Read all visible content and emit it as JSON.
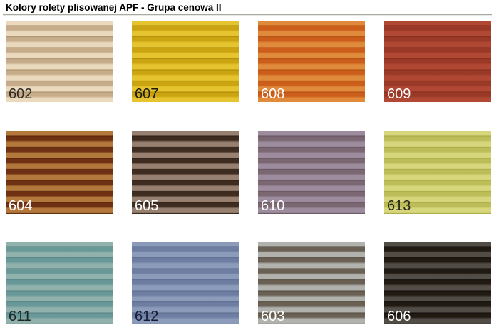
{
  "page": {
    "title": "Kolory rolety plisowanej APF - Grupa cenowa II"
  },
  "swatches": [
    {
      "code": "602",
      "light": "#ead9bd",
      "dark": "#c6ac8a",
      "edge": "#a38b68",
      "label_color": "#2f2a24"
    },
    {
      "code": "607",
      "light": "#e6c430",
      "dark": "#cba511",
      "edge": "#a8860a",
      "label_color": "#1c1a10"
    },
    {
      "code": "608",
      "light": "#e08a3c",
      "dark": "#cb5e1a",
      "edge": "#ad4a10",
      "label_color": "#ffffff"
    },
    {
      "code": "609",
      "light": "#b04834",
      "dark": "#9a3927",
      "edge": "#7f2c1c",
      "label_color": "#ffffff"
    },
    {
      "code": "604",
      "light": "#b3783b",
      "dark": "#6e3113",
      "edge": "#56220a",
      "label_color": "#ffffff"
    },
    {
      "code": "605",
      "light": "#988071",
      "dark": "#3e2c20",
      "edge": "#2a1d14",
      "label_color": "#ffffff"
    },
    {
      "code": "610",
      "light": "#9d8c9d",
      "dark": "#7b6772",
      "edge": "#61505c",
      "label_color": "#ffffff"
    },
    {
      "code": "613",
      "light": "#d6d67d",
      "dark": "#bcbc58",
      "edge": "#a5a53f",
      "label_color": "#23231a"
    },
    {
      "code": "611",
      "light": "#90b1ac",
      "dark": "#699898",
      "edge": "#548082",
      "label_color": "#1e2726"
    },
    {
      "code": "612",
      "light": "#8c9bb9",
      "dark": "#6d7ea2",
      "edge": "#59698c",
      "label_color": "#141c36"
    },
    {
      "code": "603",
      "light": "#b1b1ae",
      "dark": "#6a6154",
      "edge": "#4f4739",
      "label_color": "#ffffff"
    },
    {
      "code": "606",
      "light": "#514c45",
      "dark": "#201a13",
      "edge": "#0e0a06",
      "label_color": "#ffffff"
    }
  ]
}
